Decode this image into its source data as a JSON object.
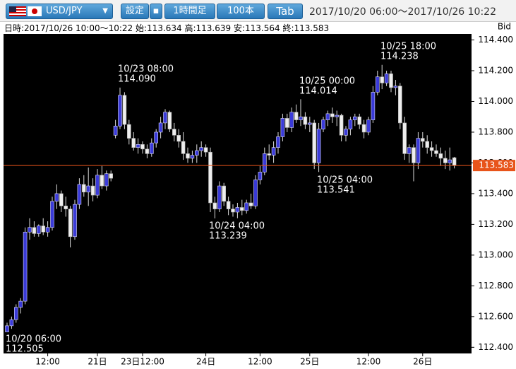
{
  "header": {
    "symbol": "USD/JPY",
    "buttons": [
      "設定",
      "1時間足",
      "100本",
      "Tab"
    ],
    "range": "2017/10/20 06:00～2017/10/26 10:22"
  },
  "info": "日時:2017/10/26 10:00～10:22 始:113.634 高:113.639 安:113.564 終:113.583",
  "chart_data": {
    "type": "candlestick",
    "y_axis_label": "Bid",
    "up_color": "#3a3ad8",
    "down_color": "#eeeeee",
    "price_line_color": "#e8541a",
    "ylim": [
      112.36,
      114.43
    ],
    "yticks": [
      {
        "value": 112.4,
        "label": "112.400"
      },
      {
        "value": 112.6,
        "label": "112.600"
      },
      {
        "value": 112.8,
        "label": "112.800"
      },
      {
        "value": 113.0,
        "label": "113.000"
      },
      {
        "value": 113.2,
        "label": "113.200"
      },
      {
        "value": 113.4,
        "label": "113.400"
      },
      {
        "value": 113.6,
        "label": "113.600"
      },
      {
        "value": 113.8,
        "label": "113.800"
      },
      {
        "value": 114.0,
        "label": "114.000"
      },
      {
        "value": 114.2,
        "label": "114.200"
      },
      {
        "value": 114.4,
        "label": "114.400"
      }
    ],
    "xticks": [
      {
        "value": 9,
        "label": "12:00"
      },
      {
        "value": 20,
        "label": "21日"
      },
      {
        "value": 30,
        "label": "23日12:00"
      },
      {
        "value": 44,
        "label": "24日"
      },
      {
        "value": 56,
        "label": "12:00"
      },
      {
        "value": 67,
        "label": "25日"
      },
      {
        "value": 80,
        "label": "12:00"
      },
      {
        "value": 92,
        "label": "26日"
      }
    ],
    "last_price": {
      "value": 113.583,
      "label": "113.583"
    },
    "annotations": [
      {
        "time": "10/20 06:00",
        "value": 112.505,
        "value_label": "112.505"
      },
      {
        "time": "10/23 08:00",
        "value": 114.09,
        "value_label": "114.090"
      },
      {
        "time": "10/24 04:00",
        "value": 113.239,
        "value_label": "113.239"
      },
      {
        "time": "10/25 00:00",
        "value": 114.014,
        "value_label": "114.014"
      },
      {
        "time": "10/25 04:00",
        "value": 113.541,
        "value_label": "113.541"
      },
      {
        "time": "10/25 18:00",
        "value": 114.238,
        "value_label": "114.238"
      }
    ],
    "ohlc": [
      [
        112.5,
        112.56,
        112.505,
        112.54
      ],
      [
        112.54,
        112.6,
        112.52,
        112.58
      ],
      [
        112.58,
        112.68,
        112.56,
        112.66
      ],
      [
        112.66,
        112.72,
        112.62,
        112.7
      ],
      [
        112.7,
        113.18,
        112.68,
        113.15
      ],
      [
        113.15,
        113.24,
        113.1,
        113.18
      ],
      [
        113.18,
        113.22,
        113.12,
        113.14
      ],
      [
        113.14,
        113.2,
        113.12,
        113.19
      ],
      [
        113.19,
        113.24,
        113.13,
        113.15
      ],
      [
        113.15,
        113.22,
        113.12,
        113.18
      ],
      [
        113.18,
        113.38,
        113.16,
        113.35
      ],
      [
        113.35,
        113.46,
        113.3,
        113.4
      ],
      [
        113.4,
        113.42,
        113.28,
        113.32
      ],
      [
        113.32,
        113.38,
        113.25,
        113.3
      ],
      [
        113.3,
        113.32,
        113.05,
        113.12
      ],
      [
        113.12,
        113.36,
        113.1,
        113.33
      ],
      [
        113.33,
        113.5,
        113.3,
        113.46
      ],
      [
        113.46,
        113.52,
        113.38,
        113.41
      ],
      [
        113.41,
        113.57,
        113.32,
        113.45
      ],
      [
        113.45,
        113.5,
        113.35,
        113.39
      ],
      [
        113.39,
        113.56,
        113.37,
        113.52
      ],
      [
        113.52,
        113.58,
        113.43,
        113.45
      ],
      [
        113.45,
        113.55,
        113.42,
        113.53
      ],
      [
        113.53,
        113.55,
        113.48,
        113.5
      ],
      [
        113.78,
        113.88,
        113.76,
        113.84
      ],
      [
        113.84,
        114.09,
        113.82,
        114.04
      ],
      [
        114.04,
        114.06,
        113.82,
        113.85
      ],
      [
        113.85,
        113.88,
        113.72,
        113.76
      ],
      [
        113.76,
        113.8,
        113.68,
        113.7
      ],
      [
        113.7,
        113.76,
        113.66,
        113.72
      ],
      [
        113.72,
        113.74,
        113.66,
        113.69
      ],
      [
        113.69,
        113.72,
        113.63,
        113.66
      ],
      [
        113.66,
        113.76,
        113.64,
        113.73
      ],
      [
        113.73,
        113.82,
        113.7,
        113.8
      ],
      [
        113.8,
        113.9,
        113.76,
        113.86
      ],
      [
        113.86,
        113.95,
        113.82,
        113.93
      ],
      [
        113.93,
        113.94,
        113.8,
        113.82
      ],
      [
        113.82,
        113.86,
        113.74,
        113.78
      ],
      [
        113.78,
        113.82,
        113.7,
        113.74
      ],
      [
        113.74,
        113.8,
        113.62,
        113.66
      ],
      [
        113.66,
        113.7,
        113.6,
        113.63
      ],
      [
        113.63,
        113.68,
        113.6,
        113.65
      ],
      [
        113.65,
        113.72,
        113.6,
        113.68
      ],
      [
        113.68,
        113.74,
        113.64,
        113.7
      ],
      [
        113.7,
        113.72,
        113.64,
        113.67
      ],
      [
        113.67,
        113.7,
        113.28,
        113.34
      ],
      [
        113.34,
        113.38,
        113.239,
        113.3
      ],
      [
        113.3,
        113.48,
        113.28,
        113.45
      ],
      [
        113.45,
        113.47,
        113.32,
        113.35
      ],
      [
        113.35,
        113.38,
        113.26,
        113.3
      ],
      [
        113.3,
        113.33,
        113.25,
        113.28
      ],
      [
        113.28,
        113.34,
        113.24,
        113.31
      ],
      [
        113.31,
        113.36,
        113.26,
        113.29
      ],
      [
        113.29,
        113.36,
        113.27,
        113.34
      ],
      [
        113.34,
        113.4,
        113.3,
        113.32
      ],
      [
        113.32,
        113.52,
        113.3,
        113.49
      ],
      [
        113.49,
        113.58,
        113.46,
        113.54
      ],
      [
        113.54,
        113.7,
        113.52,
        113.66
      ],
      [
        113.66,
        113.72,
        113.62,
        113.65
      ],
      [
        113.65,
        113.74,
        113.6,
        113.7
      ],
      [
        113.7,
        113.8,
        113.66,
        113.77
      ],
      [
        113.77,
        113.92,
        113.74,
        113.89
      ],
      [
        113.89,
        113.92,
        113.8,
        113.83
      ],
      [
        113.83,
        113.96,
        113.8,
        113.93
      ],
      [
        113.93,
        113.98,
        113.86,
        113.88
      ],
      [
        113.88,
        114.014,
        113.84,
        113.9
      ],
      [
        113.9,
        113.93,
        113.82,
        113.85
      ],
      [
        113.85,
        113.9,
        113.8,
        113.86
      ],
      [
        113.86,
        113.88,
        113.56,
        113.6
      ],
      [
        113.6,
        113.86,
        113.541,
        113.82
      ],
      [
        113.82,
        113.9,
        113.8,
        113.88
      ],
      [
        113.88,
        113.94,
        113.84,
        113.92
      ],
      [
        113.92,
        113.96,
        113.86,
        113.9
      ],
      [
        113.9,
        113.94,
        113.84,
        113.91
      ],
      [
        113.91,
        113.92,
        113.74,
        113.78
      ],
      [
        113.78,
        113.84,
        113.74,
        113.82
      ],
      [
        113.82,
        113.9,
        113.78,
        113.88
      ],
      [
        113.88,
        113.92,
        113.84,
        113.9
      ],
      [
        113.9,
        113.92,
        113.82,
        113.85
      ],
      [
        113.85,
        113.88,
        113.76,
        113.8
      ],
      [
        113.8,
        113.9,
        113.78,
        113.88
      ],
      [
        113.88,
        114.1,
        113.86,
        114.06
      ],
      [
        114.06,
        114.2,
        114.04,
        114.16
      ],
      [
        114.16,
        114.238,
        114.08,
        114.12
      ],
      [
        114.12,
        114.2,
        114.1,
        114.18
      ],
      [
        114.18,
        114.2,
        114.06,
        114.09
      ],
      [
        114.09,
        114.14,
        114.04,
        114.1
      ],
      [
        114.1,
        114.12,
        113.82,
        113.86
      ],
      [
        113.86,
        113.9,
        113.62,
        113.66
      ],
      [
        113.66,
        113.72,
        113.6,
        113.7
      ],
      [
        113.7,
        113.72,
        113.48,
        113.6
      ],
      [
        113.6,
        113.8,
        113.56,
        113.76
      ],
      [
        113.76,
        113.8,
        113.7,
        113.74
      ],
      [
        113.74,
        113.78,
        113.66,
        113.7
      ],
      [
        113.7,
        113.74,
        113.64,
        113.68
      ],
      [
        113.68,
        113.72,
        113.64,
        113.66
      ],
      [
        113.66,
        113.7,
        113.58,
        113.63
      ],
      [
        113.63,
        113.68,
        113.56,
        113.6
      ],
      [
        113.6,
        113.7,
        113.55,
        113.62
      ],
      [
        113.634,
        113.639,
        113.564,
        113.583
      ]
    ]
  }
}
